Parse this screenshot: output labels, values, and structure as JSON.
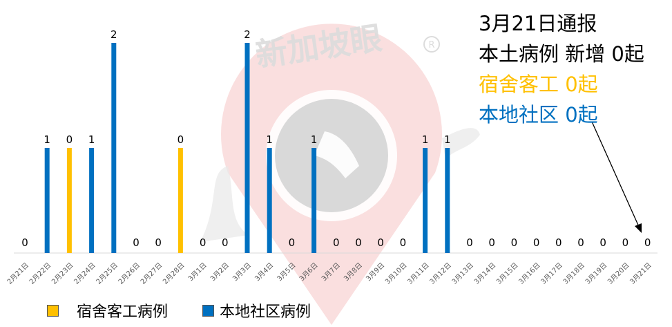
{
  "header": {
    "line1": "3月21日通报",
    "line2": "本土病例 新增 0起",
    "line3": "宿舍客工 0起",
    "line4": "本地社区 0起"
  },
  "watermark": {
    "text": "新加坡眼"
  },
  "colors": {
    "dorm": "#FFC000",
    "community": "#0070C0",
    "text_black": "#000000",
    "watermark": "#e6e6e6",
    "watermark_red": "#f6c9c9"
  },
  "chart_data": {
    "type": "bar",
    "title": "",
    "xlabel": "",
    "ylabel": "",
    "ylim": [
      0,
      2
    ],
    "grid": false,
    "legend_position": "bottom-left",
    "categories": [
      "2月21日",
      "2月22日",
      "2月23日",
      "2月24日",
      "2月25日",
      "2月26日",
      "2月27日",
      "2月28日",
      "3月1日",
      "3月2日",
      "3月3日",
      "3月4日",
      "3月5日",
      "3月6日",
      "3月7日",
      "3月8日",
      "3月9日",
      "3月10日",
      "3月11日",
      "3月12日",
      "3月13日",
      "3月14日",
      "3月15日",
      "3月16日",
      "3月17日",
      "3月18日",
      "3月19日",
      "3月20日",
      "3月21日"
    ],
    "series": [
      {
        "name": "宿舍客工病例",
        "color": "#FFC000",
        "values": [
          null,
          null,
          1,
          null,
          null,
          null,
          null,
          1,
          null,
          null,
          null,
          null,
          null,
          null,
          null,
          null,
          null,
          null,
          null,
          null,
          null,
          null,
          null,
          null,
          null,
          null,
          null,
          null,
          null
        ]
      },
      {
        "name": "本地社区病例",
        "color": "#0070C0",
        "values": [
          null,
          1,
          null,
          1,
          2,
          null,
          null,
          null,
          null,
          null,
          2,
          1,
          null,
          1,
          null,
          null,
          null,
          null,
          1,
          1,
          null,
          null,
          null,
          null,
          null,
          null,
          null,
          null,
          null
        ]
      }
    ],
    "labels": [
      {
        "category": 0,
        "text": "0"
      },
      {
        "category": 1,
        "text": "1"
      },
      {
        "category": 2,
        "text": "0"
      },
      {
        "category": 3,
        "text": "1"
      },
      {
        "category": 4,
        "text": "2"
      },
      {
        "category": 5,
        "text": "0"
      },
      {
        "category": 6,
        "text": "0"
      },
      {
        "category": 7,
        "text": "0"
      },
      {
        "category": 8,
        "text": "0"
      },
      {
        "category": 9,
        "text": "0"
      },
      {
        "category": 10,
        "text": "2"
      },
      {
        "category": 11,
        "text": "1"
      },
      {
        "category": 12,
        "text": "0"
      },
      {
        "category": 13,
        "text": "1"
      },
      {
        "category": 14,
        "text": "0"
      },
      {
        "category": 15,
        "text": "0"
      },
      {
        "category": 16,
        "text": "0"
      },
      {
        "category": 17,
        "text": "0"
      },
      {
        "category": 18,
        "text": "1"
      },
      {
        "category": 19,
        "text": "1"
      },
      {
        "category": 20,
        "text": "0"
      },
      {
        "category": 21,
        "text": "0"
      },
      {
        "category": 22,
        "text": "0"
      },
      {
        "category": 23,
        "text": "0"
      },
      {
        "category": 24,
        "text": "0"
      },
      {
        "category": 25,
        "text": "0"
      },
      {
        "category": 26,
        "text": "0"
      },
      {
        "category": 27,
        "text": "0"
      },
      {
        "category": 28,
        "text": "0"
      }
    ]
  }
}
